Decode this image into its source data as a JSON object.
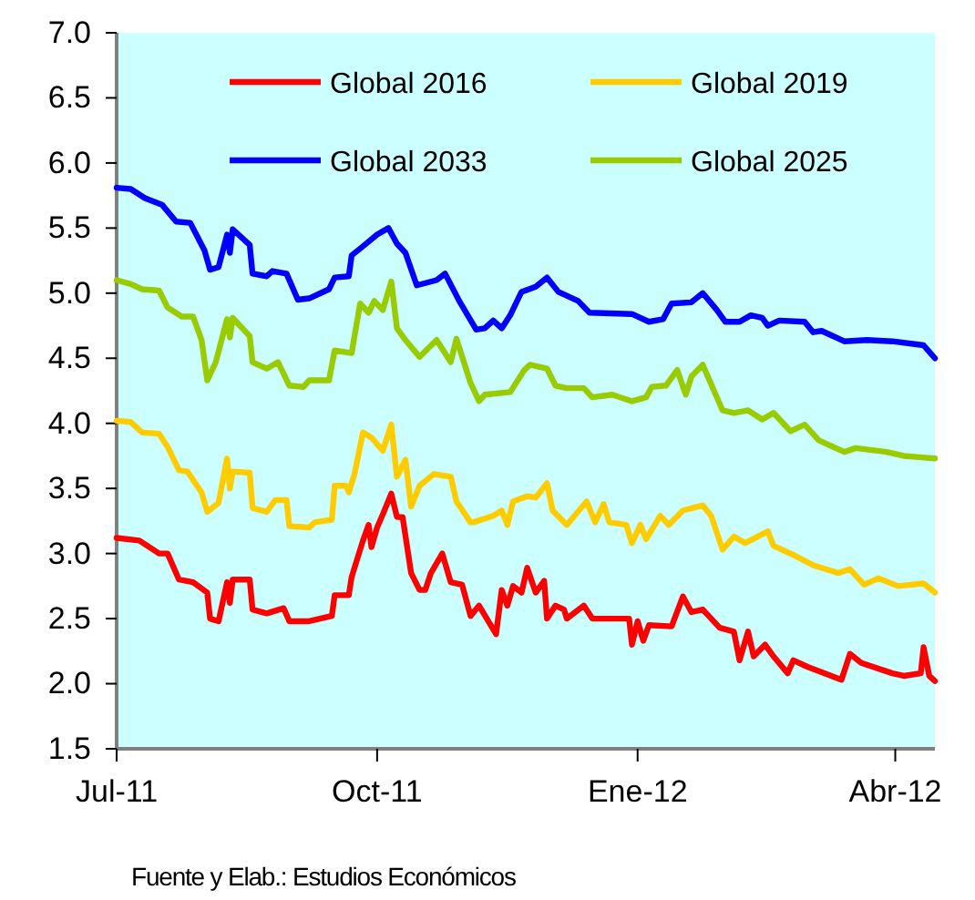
{
  "chart_data": {
    "type": "line",
    "xlim": [
      "2011-07-01",
      "2012-04-15"
    ],
    "xticks": [
      {
        "value": "2011-07-01",
        "label": "Jul-11"
      },
      {
        "value": "2011-10-01",
        "label": "Oct-11"
      },
      {
        "value": "2012-01-01",
        "label": "Ene-12"
      },
      {
        "value": "2012-04-01",
        "label": "Abr-12"
      }
    ],
    "ylim": [
      1.5,
      7.0
    ],
    "yticks": [
      1.5,
      {
        "value": 2,
        "label": "2.0"
      },
      2.5,
      {
        "value": 3,
        "label": "3.0"
      },
      3.5,
      {
        "value": 4,
        "label": "4.0"
      },
      4.5,
      {
        "value": 5,
        "label": "5.0"
      },
      5.5,
      {
        "value": 6,
        "label": "6.0"
      },
      6.5,
      {
        "value": 7,
        "label": "7.0"
      }
    ],
    "grid": false,
    "legend": "top",
    "line_style": "solid",
    "marker": "none",
    "annotations": [
      "Fuente y Elab.: Estudios Económicos"
    ],
    "series": [
      {
        "name": "Global 2016",
        "color": "#ff0000",
        "x": [
          "2011-07-01",
          "2011-07-09",
          "2011-07-16",
          "2011-07-19",
          "2011-07-23",
          "2011-07-28",
          "2011-08-02",
          "2011-08-03",
          "2011-08-06",
          "2011-08-09",
          "2011-08-10",
          "2011-08-11",
          "2011-08-17",
          "2011-08-18",
          "2011-08-23",
          "2011-08-29",
          "2011-08-31",
          "2011-09-07",
          "2011-09-15",
          "2011-09-16",
          "2011-09-21",
          "2011-09-22",
          "2011-09-26",
          "2011-09-28",
          "2011-09-29",
          "2011-10-01",
          "2011-10-03",
          "2011-10-06",
          "2011-10-08",
          "2011-10-10",
          "2011-10-13",
          "2011-10-16",
          "2011-10-18",
          "2011-10-20",
          "2011-10-24",
          "2011-10-27",
          "2011-10-31",
          "2011-11-03",
          "2011-11-06",
          "2011-11-12",
          "2011-11-14",
          "2011-11-16",
          "2011-11-18",
          "2011-11-21",
          "2011-11-23",
          "2011-11-26",
          "2011-11-29",
          "2011-11-30",
          "2011-12-03",
          "2011-12-06",
          "2011-12-07",
          "2011-12-13",
          "2011-12-16",
          "2011-12-29",
          "2011-12-30",
          "2012-01-01",
          "2012-01-03",
          "2012-01-05",
          "2012-01-13",
          "2012-01-17",
          "2012-01-20",
          "2012-01-24",
          "2012-01-30",
          "2012-02-04",
          "2012-02-06",
          "2012-02-09",
          "2012-02-11",
          "2012-02-15",
          "2012-02-18",
          "2012-02-23",
          "2012-02-25",
          "2012-03-01",
          "2012-03-13",
          "2012-03-16",
          "2012-03-20",
          "2012-03-31",
          "2012-04-04",
          "2012-04-10",
          "2012-04-11",
          "2012-04-13",
          "2012-04-15"
        ],
        "values": [
          3.12,
          3.1,
          3.0,
          3.0,
          2.8,
          2.78,
          2.7,
          2.5,
          2.48,
          2.78,
          2.62,
          2.8,
          2.8,
          2.57,
          2.54,
          2.58,
          2.48,
          2.48,
          2.52,
          2.68,
          2.68,
          2.82,
          3.1,
          3.22,
          3.05,
          3.2,
          3.3,
          3.46,
          3.28,
          3.28,
          2.85,
          2.72,
          2.72,
          2.85,
          3.0,
          2.78,
          2.76,
          2.52,
          2.6,
          2.38,
          2.72,
          2.6,
          2.75,
          2.7,
          2.89,
          2.7,
          2.79,
          2.5,
          2.6,
          2.57,
          2.5,
          2.6,
          2.5,
          2.5,
          2.3,
          2.48,
          2.33,
          2.45,
          2.44,
          2.67,
          2.55,
          2.57,
          2.43,
          2.4,
          2.18,
          2.4,
          2.21,
          2.3,
          2.21,
          2.08,
          2.18,
          2.13,
          2.03,
          2.23,
          2.16,
          2.08,
          2.06,
          2.08,
          2.28,
          2.06,
          2.02
        ]
      },
      {
        "name": "Global 2019",
        "color": "#ffcc00",
        "x": [
          "2011-07-01",
          "2011-07-06",
          "2011-07-10",
          "2011-07-16",
          "2011-07-19",
          "2011-07-23",
          "2011-07-26",
          "2011-07-31",
          "2011-08-02",
          "2011-08-06",
          "2011-08-09",
          "2011-08-10",
          "2011-08-11",
          "2011-08-17",
          "2011-08-18",
          "2011-08-23",
          "2011-08-26",
          "2011-08-30",
          "2011-08-31",
          "2011-09-07",
          "2011-09-09",
          "2011-09-15",
          "2011-09-16",
          "2011-09-20",
          "2011-09-21",
          "2011-09-23",
          "2011-09-26",
          "2011-09-29",
          "2011-10-03",
          "2011-10-06",
          "2011-10-08",
          "2011-10-11",
          "2011-10-13",
          "2011-10-16",
          "2011-10-21",
          "2011-10-27",
          "2011-10-29",
          "2011-11-03",
          "2011-11-04",
          "2011-11-11",
          "2011-11-14",
          "2011-11-16",
          "2011-11-18",
          "2011-11-23",
          "2011-11-26",
          "2011-11-30",
          "2011-12-02",
          "2011-12-07",
          "2011-12-14",
          "2011-12-17",
          "2011-12-20",
          "2011-12-22",
          "2011-12-28",
          "2011-12-30",
          "2012-01-02",
          "2012-01-04",
          "2012-01-09",
          "2012-01-12",
          "2012-01-17",
          "2012-01-24",
          "2012-01-27",
          "2012-01-31",
          "2012-02-04",
          "2012-02-08",
          "2012-02-16",
          "2012-02-18",
          "2012-02-25",
          "2012-03-03",
          "2012-03-12",
          "2012-03-16",
          "2012-03-21",
          "2012-03-26",
          "2012-04-02",
          "2012-04-11",
          "2012-04-15"
        ],
        "values": [
          4.02,
          4.01,
          3.93,
          3.92,
          3.82,
          3.64,
          3.63,
          3.47,
          3.32,
          3.39,
          3.73,
          3.5,
          3.63,
          3.62,
          3.35,
          3.32,
          3.41,
          3.41,
          3.21,
          3.2,
          3.24,
          3.26,
          3.52,
          3.52,
          3.47,
          3.61,
          3.93,
          3.89,
          3.79,
          3.99,
          3.59,
          3.72,
          3.36,
          3.52,
          3.61,
          3.59,
          3.4,
          3.24,
          3.24,
          3.29,
          3.33,
          3.22,
          3.4,
          3.44,
          3.43,
          3.54,
          3.33,
          3.22,
          3.4,
          3.24,
          3.38,
          3.24,
          3.22,
          3.08,
          3.22,
          3.11,
          3.29,
          3.22,
          3.33,
          3.37,
          3.29,
          3.03,
          3.13,
          3.08,
          3.17,
          3.06,
          2.99,
          2.91,
          2.85,
          2.88,
          2.76,
          2.81,
          2.75,
          2.77,
          2.7
        ]
      },
      {
        "name": "Global 2033",
        "color": "#0000ff",
        "x": [
          "2011-07-01",
          "2011-07-06",
          "2011-07-11",
          "2011-07-17",
          "2011-07-22",
          "2011-07-27",
          "2011-08-01",
          "2011-08-03",
          "2011-08-06",
          "2011-08-09",
          "2011-08-10",
          "2011-08-11",
          "2011-08-17",
          "2011-08-18",
          "2011-08-23",
          "2011-08-25",
          "2011-08-30",
          "2011-09-03",
          "2011-09-07",
          "2011-09-14",
          "2011-09-16",
          "2011-09-21",
          "2011-09-22",
          "2011-09-26",
          "2011-10-01",
          "2011-10-05",
          "2011-10-08",
          "2011-10-11",
          "2011-10-15",
          "2011-10-22",
          "2011-10-25",
          "2011-10-30",
          "2011-11-05",
          "2011-11-08",
          "2011-11-11",
          "2011-11-14",
          "2011-11-17",
          "2011-11-21",
          "2011-11-26",
          "2011-11-30",
          "2011-12-04",
          "2011-12-11",
          "2011-12-15",
          "2011-12-30",
          "2012-01-05",
          "2012-01-10",
          "2012-01-13",
          "2012-01-20",
          "2012-01-24",
          "2012-01-29",
          "2012-02-01",
          "2012-02-06",
          "2012-02-10",
          "2012-02-14",
          "2012-02-16",
          "2012-02-20",
          "2012-02-29",
          "2012-03-03",
          "2012-03-06",
          "2012-03-14",
          "2012-03-22",
          "2012-03-31",
          "2012-04-11",
          "2012-04-15"
        ],
        "values": [
          5.81,
          5.8,
          5.73,
          5.68,
          5.55,
          5.54,
          5.33,
          5.18,
          5.2,
          5.45,
          5.31,
          5.49,
          5.37,
          5.15,
          5.13,
          5.17,
          5.15,
          4.95,
          4.96,
          5.03,
          5.12,
          5.13,
          5.29,
          5.36,
          5.45,
          5.5,
          5.38,
          5.31,
          5.06,
          5.1,
          5.15,
          4.94,
          4.72,
          4.73,
          4.79,
          4.73,
          4.83,
          5.01,
          5.05,
          5.12,
          5.01,
          4.94,
          4.85,
          4.84,
          4.78,
          4.8,
          4.92,
          4.93,
          5.0,
          4.87,
          4.78,
          4.78,
          4.83,
          4.81,
          4.75,
          4.79,
          4.78,
          4.7,
          4.71,
          4.63,
          4.64,
          4.63,
          4.6,
          4.5
        ]
      },
      {
        "name": "Global 2025",
        "color": "#99cc00",
        "x": [
          "2011-07-01",
          "2011-07-06",
          "2011-07-10",
          "2011-07-16",
          "2011-07-19",
          "2011-07-24",
          "2011-07-28",
          "2011-07-31",
          "2011-08-02",
          "2011-08-05",
          "2011-08-09",
          "2011-08-10",
          "2011-08-11",
          "2011-08-17",
          "2011-08-18",
          "2011-08-23",
          "2011-08-27",
          "2011-08-31",
          "2011-09-05",
          "2011-09-07",
          "2011-09-14",
          "2011-09-16",
          "2011-09-22",
          "2011-09-25",
          "2011-09-28",
          "2011-09-30",
          "2011-10-03",
          "2011-10-06",
          "2011-10-08",
          "2011-10-11",
          "2011-10-16",
          "2011-10-22",
          "2011-10-27",
          "2011-10-29",
          "2011-11-03",
          "2011-11-06",
          "2011-11-08",
          "2011-11-17",
          "2011-11-22",
          "2011-11-24",
          "2011-11-30",
          "2011-12-03",
          "2011-12-07",
          "2011-12-13",
          "2011-12-16",
          "2011-12-23",
          "2011-12-30",
          "2012-01-04",
          "2012-01-06",
          "2012-01-11",
          "2012-01-15",
          "2012-01-18",
          "2012-01-20",
          "2012-01-24",
          "2012-01-31",
          "2012-02-04",
          "2012-02-09",
          "2012-02-14",
          "2012-02-18",
          "2012-02-24",
          "2012-02-29",
          "2012-03-05",
          "2012-03-14",
          "2012-03-18",
          "2012-03-29",
          "2012-04-04",
          "2012-04-15"
        ],
        "values": [
          5.1,
          5.07,
          5.03,
          5.02,
          4.89,
          4.82,
          4.82,
          4.64,
          4.33,
          4.47,
          4.8,
          4.66,
          4.81,
          4.67,
          4.47,
          4.42,
          4.47,
          4.29,
          4.28,
          4.33,
          4.33,
          4.56,
          4.54,
          4.92,
          4.85,
          4.94,
          4.87,
          5.09,
          4.73,
          4.64,
          4.51,
          4.64,
          4.47,
          4.65,
          4.31,
          4.17,
          4.22,
          4.24,
          4.41,
          4.45,
          4.42,
          4.29,
          4.27,
          4.27,
          4.2,
          4.22,
          4.17,
          4.2,
          4.28,
          4.29,
          4.41,
          4.22,
          4.36,
          4.45,
          4.1,
          4.08,
          4.1,
          4.03,
          4.08,
          3.94,
          3.99,
          3.87,
          3.78,
          3.81,
          3.78,
          3.75,
          3.73
        ]
      }
    ]
  }
}
